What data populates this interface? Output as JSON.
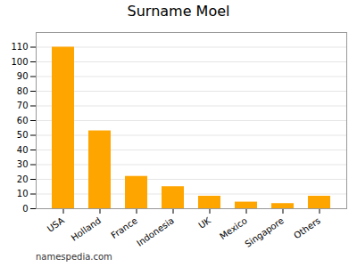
{
  "chart_data": {
    "type": "bar",
    "title": "Surname Moel",
    "categories": [
      "USA",
      "Holland",
      "France",
      "Indonesia",
      "UK",
      "Mexico",
      "Singapore",
      "Others"
    ],
    "values": [
      110,
      53,
      22,
      15,
      8.5,
      4.5,
      3.5,
      8.5
    ],
    "color": "#FFA500",
    "ylim": [
      0,
      120
    ],
    "yticks": [
      0,
      10,
      20,
      30,
      40,
      50,
      60,
      70,
      80,
      90,
      100,
      110
    ],
    "grid": true,
    "annotations": [
      "namespedia.com"
    ]
  }
}
